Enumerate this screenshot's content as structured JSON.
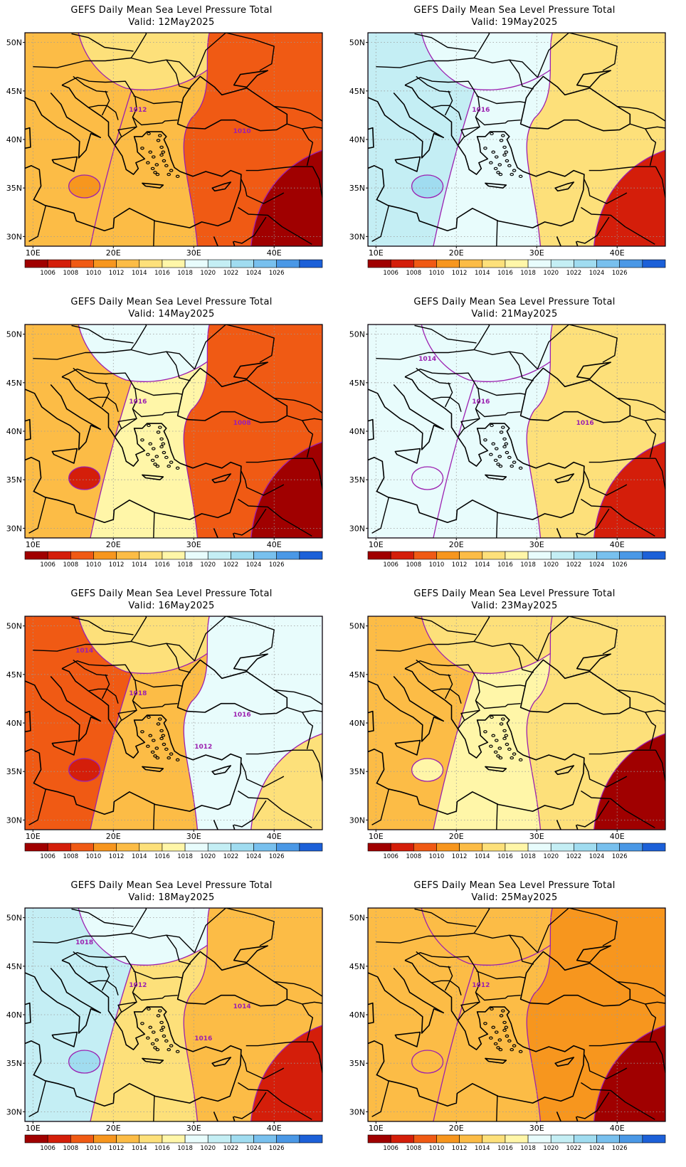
{
  "product_title": "GEFS Daily Mean Sea Level Pressure Total",
  "valid_prefix": "Valid:",
  "lat_labels": [
    "50N",
    "45N",
    "40N",
    "35N",
    "30N"
  ],
  "lon_labels": [
    "10E",
    "20E",
    "30E",
    "40E"
  ],
  "colorbar": {
    "labels": [
      "1006",
      "1008",
      "1010",
      "1012",
      "1014",
      "1016",
      "1018",
      "1020",
      "1022",
      "1024",
      "1026"
    ],
    "colors": [
      "#a00000",
      "#d41e0a",
      "#f05a14",
      "#f7961e",
      "#fcbc46",
      "#fde07a",
      "#fff6a8",
      "#e8fcfc",
      "#c4eef4",
      "#a0dcf0",
      "#78c0ee",
      "#4a98e6",
      "#1c60d8"
    ]
  },
  "contour_color": "#9b1fb0",
  "panels": [
    {
      "valid": "12May2025",
      "contour_labels": [
        "1012",
        "1010"
      ],
      "fill_levels": {
        "west": "#fcbc46",
        "north": "#fde07a",
        "center": "#fcbc46",
        "east": "#f05a14",
        "southeast": "#a00000",
        "pocket": "#f7961e"
      }
    },
    {
      "valid": "19May2025",
      "contour_labels": [
        "1016"
      ],
      "fill_levels": {
        "west": "#c4eef4",
        "north": "#e8fcfc",
        "center": "#e8fcfc",
        "east": "#fde07a",
        "southeast": "#d41e0a",
        "pocket": "#a0dcf0"
      }
    },
    {
      "valid": "14May2025",
      "contour_labels": [
        "1016",
        "1008"
      ],
      "fill_levels": {
        "west": "#fcbc46",
        "north": "#e8fcfc",
        "center": "#fff6a8",
        "east": "#f05a14",
        "southeast": "#a00000",
        "pocket": "#d41e0a"
      }
    },
    {
      "valid": "21May2025",
      "contour_labels": [
        "1016",
        "1016",
        "1014"
      ],
      "fill_levels": {
        "west": "#e8fcfc",
        "north": "#e8fcfc",
        "center": "#e8fcfc",
        "east": "#fde07a",
        "southeast": "#d41e0a",
        "pocket": "#e8fcfc"
      }
    },
    {
      "valid": "16May2025",
      "contour_labels": [
        "1018",
        "1016",
        "1014",
        "1012"
      ],
      "fill_levels": {
        "west": "#f05a14",
        "north": "#fde07a",
        "center": "#fcbc46",
        "east": "#e8fcfc",
        "southeast": "#fde07a",
        "pocket": "#d41e0a"
      }
    },
    {
      "valid": "23May2025",
      "contour_labels": [],
      "fill_levels": {
        "west": "#fcbc46",
        "north": "#fde07a",
        "center": "#fff6a8",
        "east": "#fde07a",
        "southeast": "#a00000",
        "pocket": "#fff6a8"
      }
    },
    {
      "valid": "18May2025",
      "contour_labels": [
        "1012",
        "1014",
        "1018",
        "1016"
      ],
      "fill_levels": {
        "west": "#c4eef4",
        "north": "#e8fcfc",
        "center": "#fde07a",
        "east": "#fcbc46",
        "southeast": "#d41e0a",
        "pocket": "#a0dcf0"
      }
    },
    {
      "valid": "25May2025",
      "contour_labels": [
        "1012"
      ],
      "fill_levels": {
        "west": "#fcbc46",
        "north": "#fcbc46",
        "center": "#fcbc46",
        "east": "#f7961e",
        "southeast": "#a00000",
        "pocket": "#fcbc46"
      }
    }
  ]
}
